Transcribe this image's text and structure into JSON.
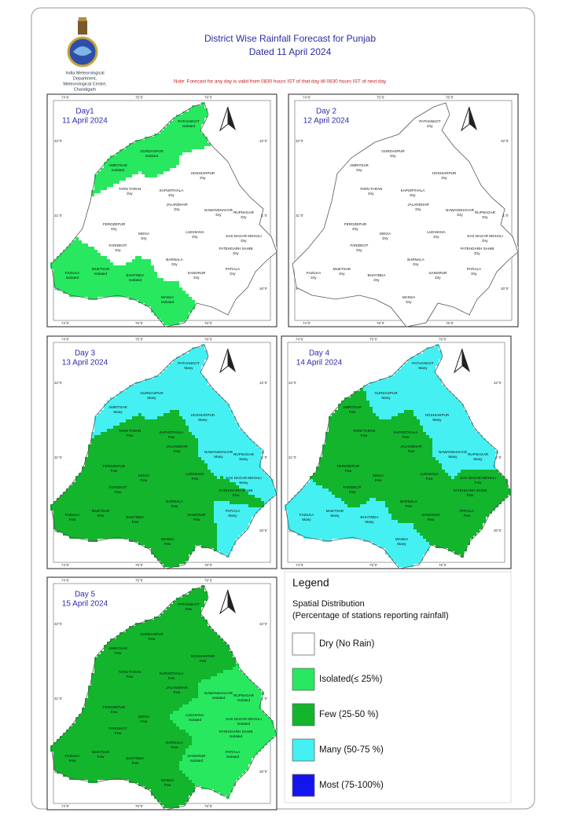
{
  "header": {
    "org": [
      "India Meteorological",
      "Department,",
      "Meteorological Centre,",
      "Chandigarh"
    ],
    "title": "District Wise Rainfall Forecast for Punjab",
    "subtitle": "Dated 11 April 2024",
    "note": "Note: Forecast for any day is valid from 0830 hours IST of that day till 0830 hours IST of next day"
  },
  "grid_labels": {
    "lon": [
      "74°0'",
      "75°0'",
      "76°0'"
    ],
    "lat": [
      "32°0'",
      "31°0'",
      "30°0'"
    ]
  },
  "maps": [
    {
      "day": "Day1",
      "date": "11 April 2024",
      "districts": [
        {
          "name": "PATHANKOT",
          "status": "Isolated"
        },
        {
          "name": "GURDASPUR",
          "status": "Isolated"
        },
        {
          "name": "AMRITSAR",
          "status": "Isolated"
        },
        {
          "name": "TARN TARAN",
          "status": "Dry"
        },
        {
          "name": "KAPURTHALA",
          "status": "Dry"
        },
        {
          "name": "JALANDHAR",
          "status": "Dry"
        },
        {
          "name": "HOSHIARPUR",
          "status": "Dry"
        },
        {
          "name": "NAWANSHAHAR",
          "status": "Dry"
        },
        {
          "name": "RUPNAGAR",
          "status": "Dry"
        },
        {
          "name": "SAS NAGAR MOHALI",
          "status": "Dry"
        },
        {
          "name": "FATEHGARH SAHIB",
          "status": "Dry"
        },
        {
          "name": "LUDHIANA",
          "status": "Dry"
        },
        {
          "name": "MOGA",
          "status": "Dry"
        },
        {
          "name": "FEROZEPUR",
          "status": "Dry"
        },
        {
          "name": "FARIDKOT",
          "status": "Dry"
        },
        {
          "name": "FAZILKA",
          "status": "Isolated"
        },
        {
          "name": "MUKTSAR",
          "status": "Isolated"
        },
        {
          "name": "BHATINDA",
          "status": "Isolated"
        },
        {
          "name": "MANSA",
          "status": "Isolated"
        },
        {
          "name": "BARNALA",
          "status": "Dry"
        },
        {
          "name": "SANGRUR",
          "status": "Dry"
        },
        {
          "name": "PATIALA",
          "status": "Dry"
        }
      ]
    },
    {
      "day": "Day 2",
      "date": "12 April 2024",
      "districts": [
        {
          "name": "PATHANKOT",
          "status": "Dry"
        },
        {
          "name": "GURDASPUR",
          "status": "Dry"
        },
        {
          "name": "AMRITSAR",
          "status": "Dry"
        },
        {
          "name": "TARN TARAN",
          "status": "Dry"
        },
        {
          "name": "KAPURTHALA",
          "status": "Dry"
        },
        {
          "name": "JALANDHAR",
          "status": "Dry"
        },
        {
          "name": "HOSHIARPUR",
          "status": "Dry"
        },
        {
          "name": "NAWANSHAHAR",
          "status": "Dry"
        },
        {
          "name": "RUPNAGAR",
          "status": "Dry"
        },
        {
          "name": "SAS NAGAR MOHALI",
          "status": "Dry"
        },
        {
          "name": "FATEHGARH SAHIB",
          "status": "Dry"
        },
        {
          "name": "LUDHIANA",
          "status": "Dry"
        },
        {
          "name": "MOGA",
          "status": "Dry"
        },
        {
          "name": "FEROZEPUR",
          "status": "Dry"
        },
        {
          "name": "FARIDKOT",
          "status": "Dry"
        },
        {
          "name": "FAZILKA",
          "status": "Dry"
        },
        {
          "name": "MUKTSAR",
          "status": "Dry"
        },
        {
          "name": "BHATINDA",
          "status": "Dry"
        },
        {
          "name": "MANSA",
          "status": "Dry"
        },
        {
          "name": "BARNALA",
          "status": "Dry"
        },
        {
          "name": "SANGRUR",
          "status": "Dry"
        },
        {
          "name": "PATIALA",
          "status": "Dry"
        }
      ]
    },
    {
      "day": "Day 3",
      "date": "13 April 2024",
      "districts": [
        {
          "name": "PATHANKOT",
          "status": "Many"
        },
        {
          "name": "GURDASPUR",
          "status": "Many"
        },
        {
          "name": "AMRITSAR",
          "status": "Many"
        },
        {
          "name": "TARN TARAN",
          "status": "Few"
        },
        {
          "name": "KAPURTHALA",
          "status": "Few"
        },
        {
          "name": "JALANDHAR",
          "status": "Few"
        },
        {
          "name": "HOSHIARPUR",
          "status": "Many"
        },
        {
          "name": "NAWANSHAHAR",
          "status": "Many"
        },
        {
          "name": "RUPNAGAR",
          "status": "Many"
        },
        {
          "name": "SAS NAGAR MOHALI",
          "status": "Many"
        },
        {
          "name": "FATEHGARH SAHIB",
          "status": "Few"
        },
        {
          "name": "LUDHIANA",
          "status": "Few"
        },
        {
          "name": "MOGA",
          "status": "Few"
        },
        {
          "name": "FEROZEPUR",
          "status": "Few"
        },
        {
          "name": "FARIDKOT",
          "status": "Few"
        },
        {
          "name": "FAZILKA",
          "status": "Few"
        },
        {
          "name": "MUKTSAR",
          "status": "Few"
        },
        {
          "name": "BHATINDA",
          "status": "Few"
        },
        {
          "name": "MANSA",
          "status": "Few"
        },
        {
          "name": "BARNALA",
          "status": "Few"
        },
        {
          "name": "SANGRUR",
          "status": "Few"
        },
        {
          "name": "PATIALA",
          "status": "Many"
        }
      ]
    },
    {
      "day": "Day 4",
      "date": "14 April 2024",
      "districts": [
        {
          "name": "PATHANKOT",
          "status": "Many"
        },
        {
          "name": "GURDASPUR",
          "status": "Many"
        },
        {
          "name": "AMRITSAR",
          "status": "Few"
        },
        {
          "name": "TARN TARAN",
          "status": "Few"
        },
        {
          "name": "KAPURTHALA",
          "status": "Few"
        },
        {
          "name": "JALANDHAR",
          "status": "Few"
        },
        {
          "name": "HOSHIARPUR",
          "status": "Many"
        },
        {
          "name": "NAWANSHAHAR",
          "status": "Many"
        },
        {
          "name": "RUPNAGAR",
          "status": "Many"
        },
        {
          "name": "SAS NAGAR MOHALI",
          "status": "Few"
        },
        {
          "name": "FATEHGARH SAHIB",
          "status": "Few"
        },
        {
          "name": "LUDHIANA",
          "status": "Few"
        },
        {
          "name": "MOGA",
          "status": "Few"
        },
        {
          "name": "FEROZEPUR",
          "status": "Few"
        },
        {
          "name": "FARIDKOT",
          "status": "Few"
        },
        {
          "name": "FAZILKA",
          "status": "Many"
        },
        {
          "name": "MUKTSAR",
          "status": "Many"
        },
        {
          "name": "BHATINDA",
          "status": "Many"
        },
        {
          "name": "MANSA",
          "status": "Many"
        },
        {
          "name": "BARNALA",
          "status": "Few"
        },
        {
          "name": "SANGRUR",
          "status": "Few"
        },
        {
          "name": "PATIALA",
          "status": "Few"
        }
      ]
    },
    {
      "day": "Day 5",
      "date": "15 April 2024",
      "districts": [
        {
          "name": "PATHANKOT",
          "status": "Few"
        },
        {
          "name": "GURDASPUR",
          "status": "Few"
        },
        {
          "name": "AMRITSAR",
          "status": "Few"
        },
        {
          "name": "TARN TARAN",
          "status": "Few"
        },
        {
          "name": "KAPURTHALA",
          "status": "Few"
        },
        {
          "name": "JALANDHAR",
          "status": "Few"
        },
        {
          "name": "HOSHIARPUR",
          "status": "Few"
        },
        {
          "name": "NAWANSHAHAR",
          "status": "Isolated"
        },
        {
          "name": "RUPNAGAR",
          "status": "Isolated"
        },
        {
          "name": "SAS NAGAR MOHALI",
          "status": "Isolated"
        },
        {
          "name": "FATEHGARH SAHIB",
          "status": "Isolated"
        },
        {
          "name": "LUDHIANA",
          "status": "Isolated"
        },
        {
          "name": "MOGA",
          "status": "Few"
        },
        {
          "name": "FEROZEPUR",
          "status": "Few"
        },
        {
          "name": "FARIDKOT",
          "status": "Few"
        },
        {
          "name": "FAZILKA",
          "status": "Few"
        },
        {
          "name": "MUKTSAR",
          "status": "Few"
        },
        {
          "name": "BHATINDA",
          "status": "Few"
        },
        {
          "name": "MANSA",
          "status": "Few"
        },
        {
          "name": "BARNALA",
          "status": "Few"
        },
        {
          "name": "SANGRUR",
          "status": "Isolated"
        },
        {
          "name": "PATIALA",
          "status": "Isolated"
        }
      ]
    }
  ],
  "legend": {
    "title": "Legend",
    "subtitle": "Spatial Distribution",
    "description": "(Percentage of stations reporting rainfall)",
    "items": [
      {
        "label": "Dry (No Rain)",
        "color": "#ffffff"
      },
      {
        "label": "Isolated(≤ 25%)",
        "color": "#27e85e"
      },
      {
        "label": "Few (25-50 %)",
        "color": "#12b52c"
      },
      {
        "label": "Many (50-75 %)",
        "color": "#44f0f2"
      },
      {
        "label": "Most (75-100%)",
        "color": "#1414ef"
      }
    ]
  }
}
